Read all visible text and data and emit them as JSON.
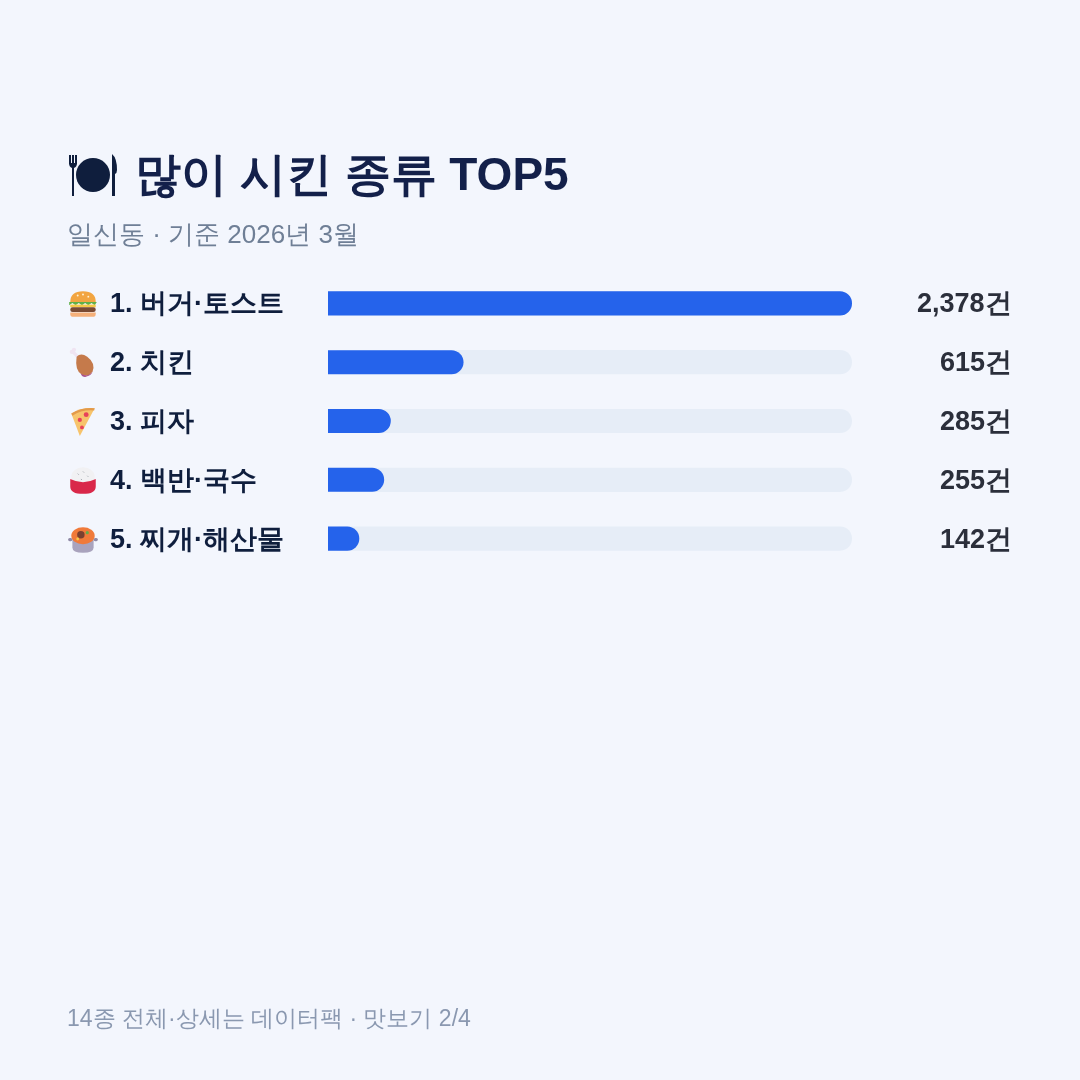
{
  "chart_data": {
    "type": "bar",
    "orientation": "horizontal",
    "title": "많이 시킨 종류 TOP5",
    "subtitle": "일신동 · 기준 2026년 3월",
    "categories": [
      "1. 버거·토스트",
      "2. 치킨",
      "3. 피자",
      "4. 백반·국수",
      "5. 찌개·해산물"
    ],
    "values": [
      2378,
      615,
      285,
      255,
      142
    ],
    "color": "#2563eb",
    "value_labels": [
      "2,378건",
      "615건",
      "285건",
      "255건",
      "142건"
    ],
    "tick_labels": "y",
    "annotations": [
      "14종 전체·상세는 데이터팩 · 맛보기 2/4"
    ]
  }
}
